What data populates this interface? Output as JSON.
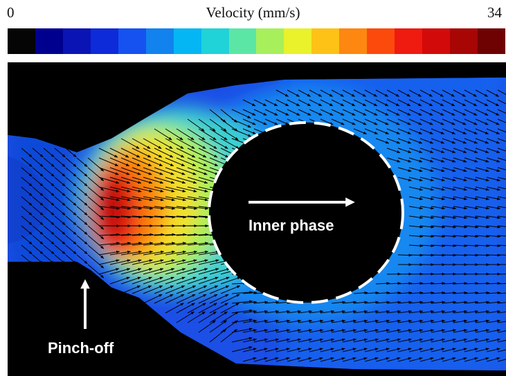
{
  "colorbar": {
    "min_label": "0",
    "title": "Velocity (mm/s)",
    "max_label": "34",
    "colors": [
      "#050505",
      "#00008f",
      "#0a14b4",
      "#0d2bd8",
      "#1552f0",
      "#1282ee",
      "#05b6f4",
      "#20d3d8",
      "#5ce6a6",
      "#a8ef5c",
      "#e9f22a",
      "#fdc215",
      "#fd8710",
      "#fc4a0c",
      "#ef1a10",
      "#d20a0a",
      "#a80505",
      "#6e0202"
    ]
  },
  "annotations": {
    "inner_phase": "Inner phase",
    "pinch_off": "Pinch-off"
  }
}
